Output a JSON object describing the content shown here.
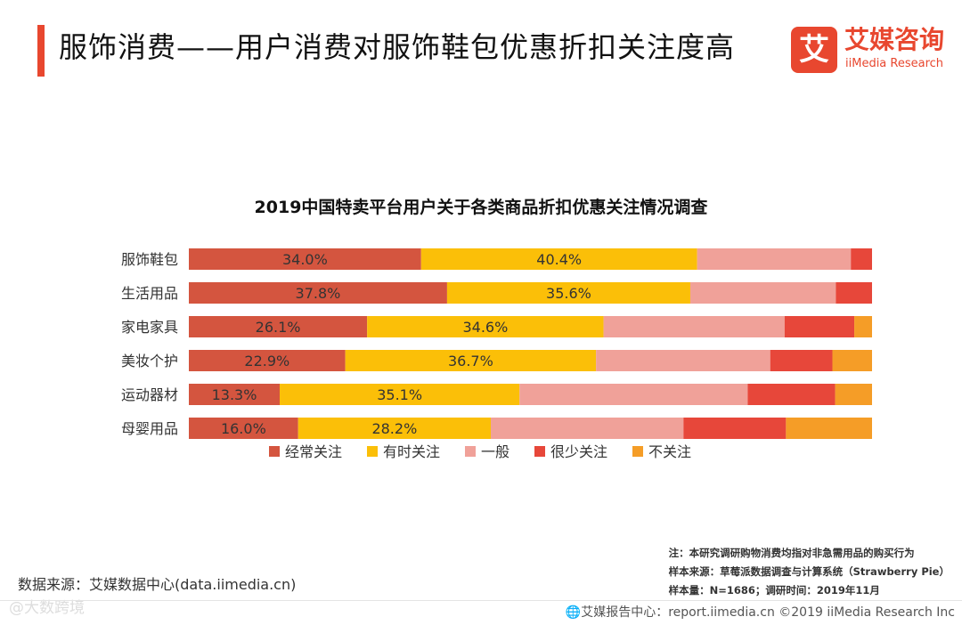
{
  "header": {
    "title": "服饰消费——用户消费对服饰鞋包优惠折扣关注度高",
    "logo_mark": "艾",
    "logo_cn": "艾媒咨询",
    "logo_en": "iiMedia Research"
  },
  "colors": {
    "accent": "#e8472f",
    "series": [
      "#d4553f",
      "#fbbf08",
      "#f0a199",
      "#e7473a",
      "#f59d27"
    ]
  },
  "chart_data": {
    "type": "bar",
    "orientation": "horizontal",
    "stacked": true,
    "title": "2019中国特卖平台用户关于各类商品折扣优惠关注情况调查",
    "categories": [
      "服饰鞋包",
      "生活用品",
      "家电家具",
      "美妆个护",
      "运动器材",
      "母婴用品"
    ],
    "series": [
      {
        "name": "经常关注",
        "values": [
          34.0,
          37.8,
          26.1,
          22.9,
          13.3,
          16.0
        ]
      },
      {
        "name": "有时关注",
        "values": [
          40.4,
          35.6,
          34.6,
          36.7,
          35.1,
          28.2
        ]
      },
      {
        "name": "一般",
        "values": [
          22.5,
          21.3,
          26.5,
          25.5,
          33.4,
          28.2
        ]
      },
      {
        "name": "很少关注",
        "values": [
          3.1,
          5.3,
          10.2,
          9.1,
          12.8,
          15.0
        ]
      },
      {
        "name": "不关注",
        "values": [
          0,
          0,
          2.6,
          5.8,
          5.4,
          12.6
        ]
      }
    ],
    "labeled_series": [
      "经常关注",
      "有时关注"
    ],
    "value_format": "0.0%",
    "xlim": [
      0,
      100
    ],
    "legend": "bottom-center",
    "grid": false
  },
  "notes": [
    "注：本研究调研购物消费均指对非急需用品的购买行为",
    "样本来源：草莓派数据调查与计算系统（Strawberry Pie）",
    "样本量：N=1686；调研时间：2019年11月"
  ],
  "source": "数据来源：艾媒数据中心(data.iimedia.cn)",
  "watermark": "@大数跨境",
  "copyright": "🌐艾媒报告中心：report.iimedia.cn  ©2019  iiMedia Research  Inc"
}
